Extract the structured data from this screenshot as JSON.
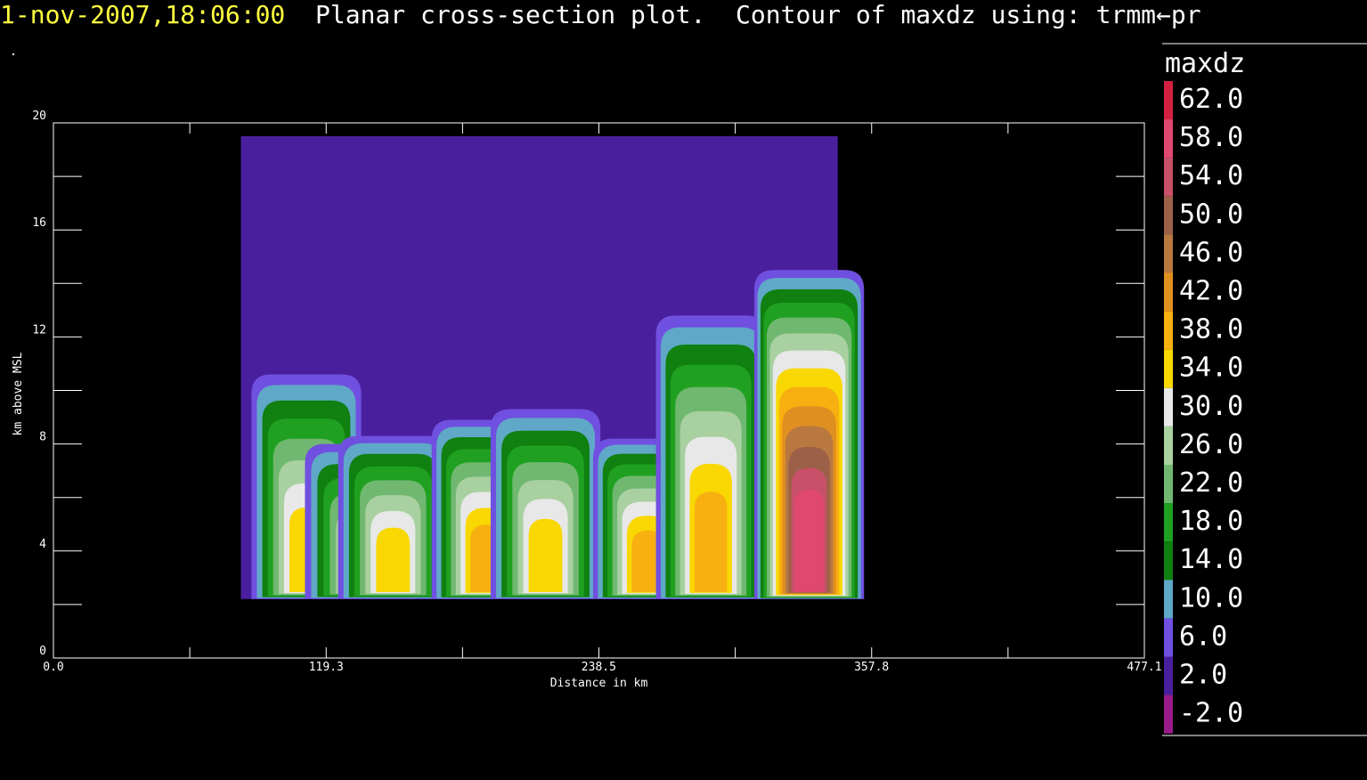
{
  "header": {
    "timestamp": "1-nov-2007,18:06:00",
    "description": "  Planar cross-section plot.  Contour of maxdz using: trmm←pr"
  },
  "colors": {
    "timestamp": "#ffff40",
    "text": "#ffffff",
    "background": "#000000"
  },
  "chart_data": {
    "type": "heatmap",
    "title": "Planar cross-section plot.  Contour of maxdz using: trmm←pr",
    "xlabel": "Distance in km",
    "ylabel": "km above MSL",
    "xlim": [
      0,
      477.1
    ],
    "ylim": [
      0,
      20
    ],
    "x_tick_labels": [
      "0.0",
      "119.3",
      "238.5",
      "357.8",
      "477.1"
    ],
    "x_tick_values": [
      0,
      119.3,
      238.5,
      357.8,
      477.1
    ],
    "y_tick_labels": [
      "0",
      "4",
      "8",
      "12",
      "16",
      "20"
    ],
    "y_tick_values": [
      0,
      4,
      8,
      12,
      16,
      20
    ],
    "grid": false,
    "legend": {
      "title": "maxdz",
      "placement": "right",
      "levels": [
        "62.0",
        "58.0",
        "54.0",
        "50.0",
        "46.0",
        "42.0",
        "38.0",
        "34.0",
        "30.0",
        "26.0",
        "22.0",
        "18.0",
        "14.0",
        "10.0",
        "6.0",
        "2.0",
        "-2.0"
      ],
      "level_values": [
        62,
        58,
        54,
        50,
        46,
        42,
        38,
        34,
        30,
        26,
        22,
        18,
        14,
        10,
        6,
        2,
        -2
      ],
      "colors": [
        "#d42040",
        "#e04870",
        "#c85068",
        "#9c6048",
        "#b87840",
        "#e09020",
        "#f8b010",
        "#f8d800",
        "#e8e8e8",
        "#a8d0a0",
        "#70b870",
        "#20a020",
        "#108010",
        "#60a8c8",
        "#7050e0",
        "#4a1f9e",
        "#9a1a8a"
      ]
    },
    "field_extent": {
      "x_range_km": [
        82.0,
        343.0
      ],
      "z_range_km": [
        2.2,
        19.5
      ]
    },
    "cells": [
      {
        "center_km": 110.6,
        "top_km": 10.6,
        "max_dbz": 34.0
      },
      {
        "center_km": 134.0,
        "top_km": 8.0,
        "max_dbz": 30.0
      },
      {
        "center_km": 148.5,
        "top_km": 8.3,
        "max_dbz": 34.0
      },
      {
        "center_km": 189.4,
        "top_km": 8.9,
        "max_dbz": 38.0
      },
      {
        "center_km": 215.2,
        "top_km": 9.3,
        "max_dbz": 34.0
      },
      {
        "center_km": 260.0,
        "top_km": 8.2,
        "max_dbz": 38.0
      },
      {
        "center_km": 287.5,
        "top_km": 12.8,
        "max_dbz": 38.0
      },
      {
        "center_km": 330.5,
        "top_km": 14.5,
        "max_dbz": 58.0
      }
    ]
  }
}
